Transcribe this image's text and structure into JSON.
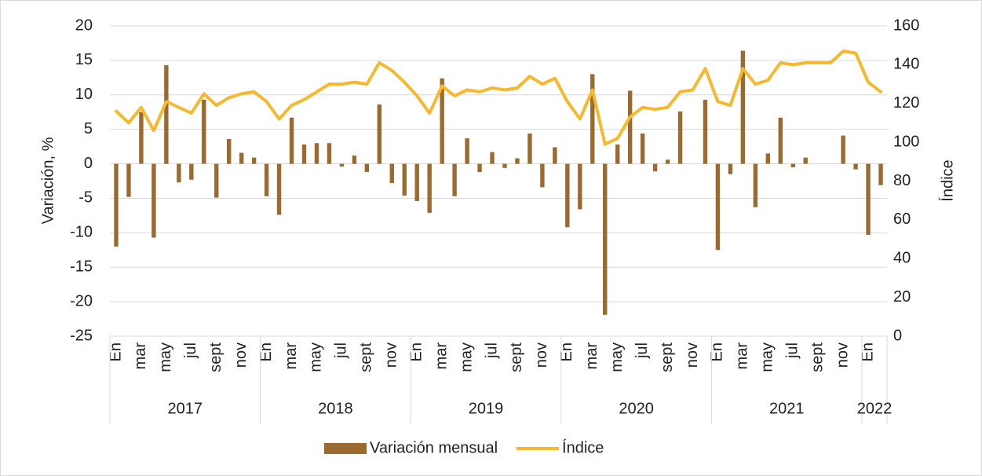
{
  "chart_data": {
    "type": "bar-line",
    "y_title": "Variación, %",
    "y2_title": "Índice",
    "categories": [
      "En",
      null,
      "mar",
      null,
      "may",
      null,
      "jul",
      null,
      "sept",
      null,
      "nov",
      null,
      "En",
      null,
      "mar",
      null,
      "may",
      null,
      "jul",
      null,
      "sept",
      null,
      "nov",
      null,
      "En",
      null,
      "mar",
      null,
      "may",
      null,
      "jul",
      null,
      "sept",
      null,
      "nov",
      null,
      "En",
      null,
      "mar",
      null,
      "may",
      null,
      "jul",
      null,
      "sept",
      null,
      "nov",
      null,
      "En",
      null,
      "mar",
      null,
      "may",
      null,
      "jul",
      null,
      "sept",
      null,
      "nov",
      null,
      "En",
      null
    ],
    "groups": [
      {
        "label": "2017",
        "span": 12
      },
      {
        "label": "2018",
        "span": 12
      },
      {
        "label": "2019",
        "span": 12
      },
      {
        "label": "2020",
        "span": 12
      },
      {
        "label": "2021",
        "span": 12
      },
      {
        "label": "2022",
        "span": 2
      }
    ],
    "series": [
      {
        "name": "Variación mensual",
        "type": "bar",
        "color": "#9b6a2f",
        "values": [
          -12,
          -4.8,
          7.5,
          -10.7,
          14.3,
          -2.7,
          -2.3,
          9.3,
          -4.9,
          3.6,
          1.6,
          0.9,
          -4.7,
          -7.4,
          6.7,
          2.8,
          3.0,
          3.0,
          -0.4,
          1.2,
          -1.2,
          8.6,
          -2.8,
          -4.6,
          -5.4,
          -7.1,
          12.4,
          -4.7,
          3.7,
          -1.2,
          1.7,
          -0.6,
          0.8,
          4.4,
          -3.4,
          2.4,
          -9.2,
          -6.6,
          13.0,
          -21.9,
          2.8,
          10.6,
          4.4,
          -1.1,
          0.6,
          7.6,
          0,
          9.3,
          -12.5,
          -1.5,
          16.4,
          -6.3,
          1.5,
          6.7,
          -0.5,
          0.9,
          0,
          0,
          4.1,
          -0.8,
          -10.3,
          -3.1
        ]
      },
      {
        "name": "Índice",
        "type": "line",
        "axis": "y2",
        "color": "#f5b82e",
        "values": [
          116,
          110,
          118,
          106,
          121,
          118,
          115,
          125,
          119,
          123,
          125,
          126,
          121,
          112,
          119,
          122,
          126,
          130,
          130,
          131,
          130,
          141,
          137,
          131,
          124,
          115,
          129,
          124,
          127,
          126,
          128,
          127,
          128,
          134,
          130,
          133,
          121,
          112,
          127,
          99,
          102,
          113,
          118,
          117,
          118,
          126,
          127,
          138,
          121,
          119,
          138,
          130,
          132,
          141,
          140,
          141,
          141,
          141,
          147,
          146,
          131,
          126
        ]
      }
    ],
    "ylim": [
      -25,
      20
    ],
    "yticks": [
      -25,
      -20,
      -15,
      -10,
      -5,
      0,
      5,
      10,
      15,
      20
    ],
    "y2lim": [
      0,
      160
    ],
    "y2ticks": [
      0,
      20,
      40,
      60,
      80,
      100,
      120,
      140,
      160
    ],
    "grid": true,
    "legend": "bottom"
  }
}
